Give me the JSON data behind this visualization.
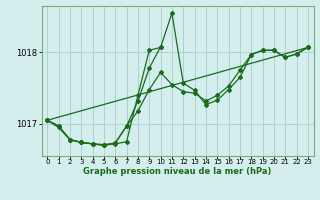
{
  "xlabel_label": "Graphe pression niveau de la mer (hPa)",
  "bg_color": "#d4eeee",
  "line_color": "#1a6b1a",
  "grid_color": "#b0d0d0",
  "spine_color": "#7aaa7a",
  "ylim": [
    1016.55,
    1018.65
  ],
  "xlim": [
    -0.5,
    23.5
  ],
  "yticks": [
    1017,
    1018
  ],
  "xticks": [
    0,
    1,
    2,
    3,
    4,
    5,
    6,
    7,
    8,
    9,
    10,
    11,
    12,
    13,
    14,
    15,
    16,
    17,
    18,
    19,
    20,
    21,
    22,
    23
  ],
  "series1_x": [
    0,
    1,
    2,
    3,
    4,
    5,
    6,
    7,
    8,
    9,
    10,
    11,
    12,
    13,
    14,
    15,
    16,
    17,
    18,
    19,
    20,
    21,
    22,
    23
  ],
  "series1_y": [
    1017.05,
    1016.95,
    1016.78,
    1016.74,
    1016.72,
    1016.7,
    1016.72,
    1016.75,
    1017.4,
    1018.03,
    1018.07,
    1018.55,
    1017.57,
    1017.47,
    1017.27,
    1017.33,
    1017.48,
    1017.65,
    1017.97,
    1018.03,
    1018.03,
    1017.93,
    1017.98,
    1018.07
  ],
  "series2_x": [
    0,
    1,
    2,
    3,
    4,
    5,
    6,
    7,
    8,
    9,
    10,
    11,
    12,
    13,
    14,
    15,
    16,
    17,
    18,
    19,
    20,
    21,
    22,
    23
  ],
  "series2_y": [
    1017.05,
    1016.97,
    1016.78,
    1016.74,
    1016.72,
    1016.71,
    1016.73,
    1016.97,
    1017.18,
    1017.48,
    1017.72,
    1017.55,
    1017.45,
    1017.43,
    1017.32,
    1017.4,
    1017.53,
    1017.75,
    1017.97,
    1018.03,
    1018.03,
    1017.93,
    1017.98,
    1018.07
  ],
  "series3_x": [
    0,
    23
  ],
  "series3_y": [
    1017.05,
    1018.07
  ],
  "series4_x": [
    0,
    1,
    2,
    3,
    4,
    5,
    6,
    7,
    8,
    9,
    10
  ],
  "series4_y": [
    1017.05,
    1016.97,
    1016.78,
    1016.74,
    1016.72,
    1016.7,
    1016.73,
    1016.97,
    1017.32,
    1017.78,
    1018.08
  ]
}
